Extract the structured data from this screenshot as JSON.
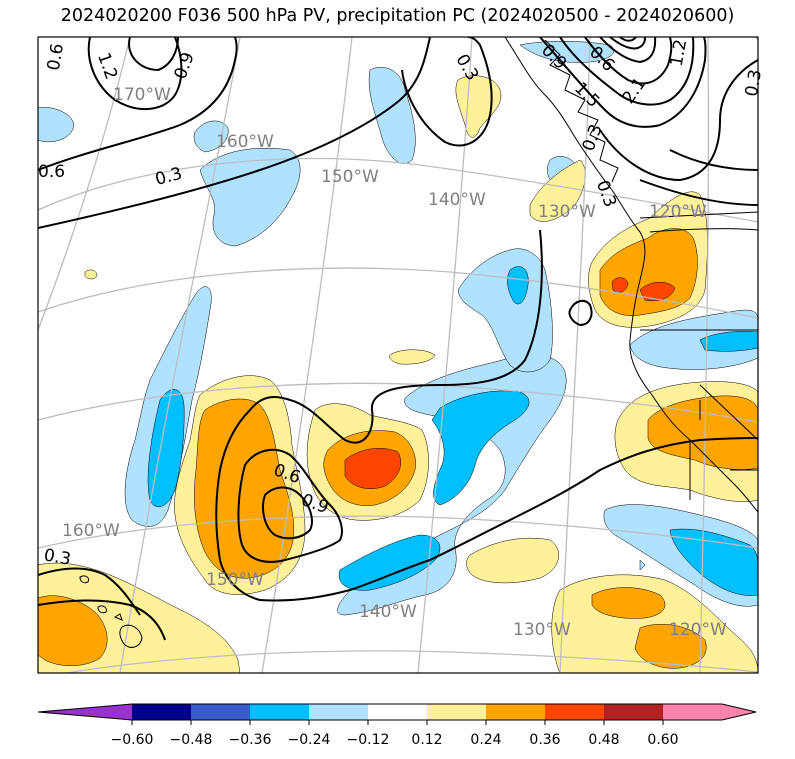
{
  "title": "2024020200 F036 500 hPa PV, precipitation PC (2024020500 - 2024020600)",
  "colors": {
    "c_n060": "#9932cc",
    "c_n048": "#00008b",
    "c_n036": "#3a5ccc",
    "c_n024": "#00bfff",
    "c_n012": "#b0e2ff",
    "c_p000": "#ffffff",
    "c_p012": "#fff09a",
    "c_p024": "#ffa500",
    "c_p036": "#ff4500",
    "c_p048": "#b22222",
    "c_p060": "#ff82ab",
    "graticule": "#bdbdbd",
    "coast": "#000000"
  },
  "longitude_labels": [
    "170°W",
    "160°W",
    "150°W",
    "140°W",
    "130°W",
    "120°W",
    "160°W",
    "150°W",
    "140°W",
    "130°W",
    "120°W"
  ],
  "contour_labels": [
    "0.6",
    "1.2",
    "0.9",
    "0.6",
    "0.3",
    "0.3",
    "0.6",
    "0.9",
    "0.3",
    "0.3",
    "1.5",
    "2.1",
    "1.2",
    "0.3",
    "0.9",
    "0.6",
    "0.3"
  ],
  "colorbar": {
    "ticks": [
      "−0.60",
      "−0.48",
      "−0.36",
      "−0.24",
      "−0.12",
      "0.12",
      "0.24",
      "0.36",
      "0.48",
      "0.60"
    ]
  }
}
